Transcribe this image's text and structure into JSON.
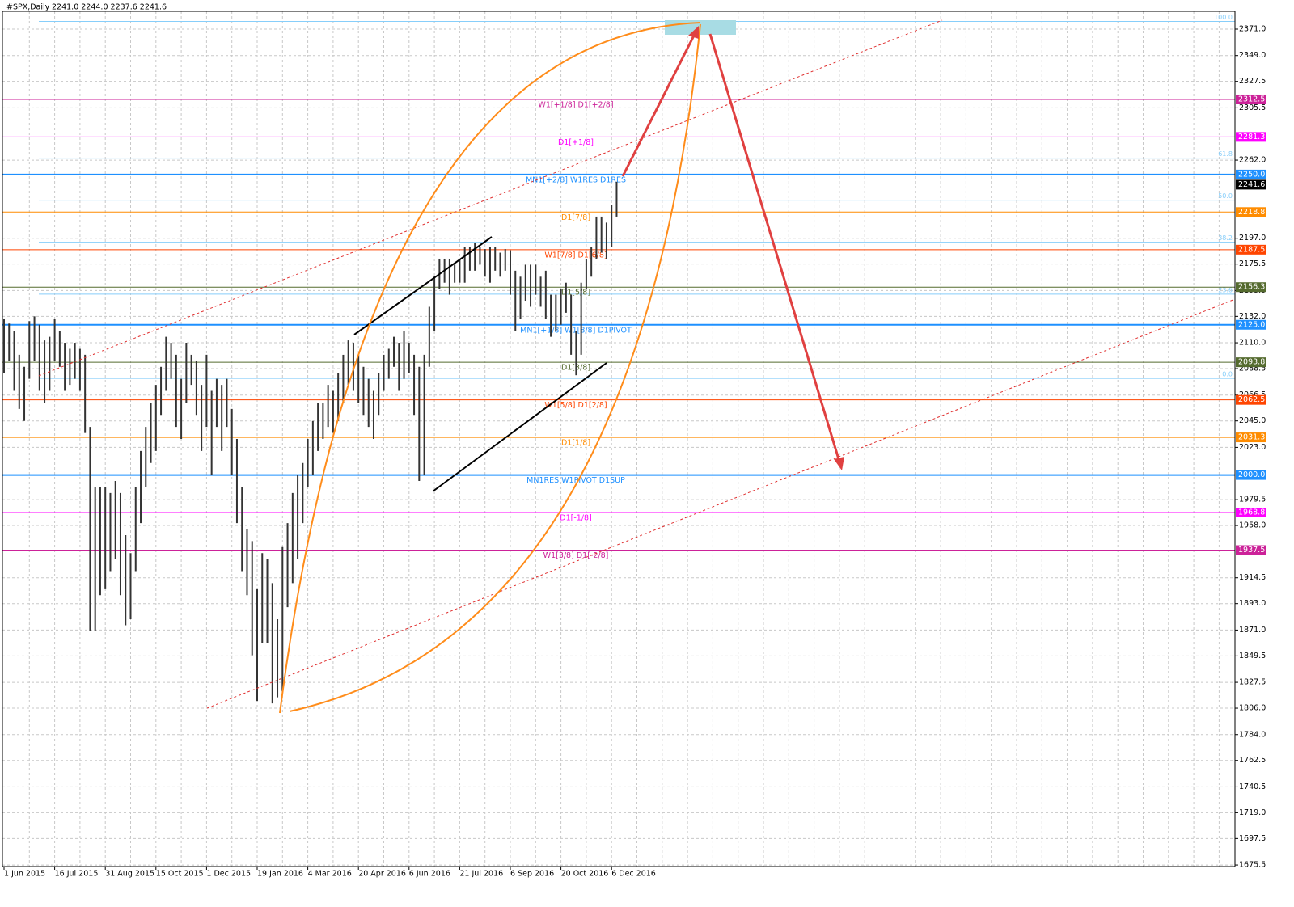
{
  "chart_data": {
    "type": "ohlc",
    "title": "#SPX,Daily",
    "subtitle": "2241.0 2244.0 2237.6 2241.6",
    "categories": [
      "1 Jun 2015",
      null,
      null,
      null,
      null,
      null,
      null,
      null,
      null,
      null,
      "16 Jul 2015",
      null,
      null,
      null,
      null,
      null,
      null,
      null,
      null,
      null,
      "31 Aug 2015",
      null,
      null,
      null,
      null,
      null,
      null,
      null,
      null,
      null,
      "15 Oct 2015",
      null,
      null,
      null,
      null,
      null,
      null,
      null,
      null,
      null,
      "1 Dec 2015",
      null,
      null,
      null,
      null,
      null,
      null,
      null,
      null,
      null,
      "19 Jan 2016",
      null,
      null,
      null,
      null,
      null,
      null,
      null,
      null,
      null,
      "4 Mar 2016",
      null,
      null,
      null,
      null,
      null,
      null,
      null,
      null,
      null,
      "20 Apr 2016",
      null,
      null,
      null,
      null,
      null,
      null,
      null,
      null,
      null,
      "6 Jun 2016",
      null,
      null,
      null,
      null,
      null,
      null,
      null,
      null,
      null,
      "21 Jul 2016",
      null,
      null,
      null,
      null,
      null,
      null,
      null,
      null,
      null,
      "6 Sep 2016",
      null,
      null,
      null,
      null,
      null,
      null,
      null,
      null,
      null,
      "20 Oct 2016",
      null,
      null,
      null,
      null,
      null,
      null,
      null,
      null,
      null,
      "6 Dec 2016",
      null
    ],
    "high": [
      2130,
      2126,
      2120,
      2100,
      2090,
      2128,
      2132,
      2125,
      2112,
      2115,
      2130,
      2120,
      2110,
      2105,
      2110,
      2105,
      2100,
      2040,
      1990,
      1990,
      1990,
      1985,
      1995,
      1985,
      1950,
      1935,
      1990,
      2020,
      2040,
      2060,
      2075,
      2090,
      2115,
      2110,
      2100,
      2080,
      2110,
      2100,
      2095,
      2075,
      2100,
      2070,
      2080,
      2075,
      2080,
      2055,
      2030,
      1990,
      1955,
      1945,
      1905,
      1935,
      1930,
      1910,
      1880,
      1940,
      1960,
      1985,
      2000,
      2010,
      2030,
      2045,
      2060,
      2060,
      2075,
      2070,
      2085,
      2100,
      2112,
      2110,
      2100,
      2090,
      2080,
      2070,
      2085,
      2100,
      2105,
      2115,
      2110,
      2120,
      2110,
      2100,
      2090,
      2100,
      2140,
      2165,
      2180,
      2180,
      2180,
      2175,
      2180,
      2190,
      2190,
      2193,
      2190,
      2188,
      2190,
      2190,
      2185,
      2188,
      2187,
      2170,
      2165,
      2175,
      2175,
      2175,
      2165,
      2170,
      2150,
      2150,
      2155,
      2160,
      2150,
      2120,
      2160,
      2180,
      2190,
      2215,
      2215,
      2210,
      2225,
      2244
    ],
    "low": [
      2085,
      2095,
      2070,
      2055,
      2045,
      2080,
      2095,
      2070,
      2060,
      2070,
      2095,
      2090,
      2070,
      2075,
      2080,
      2070,
      2035,
      1870,
      1870,
      1900,
      1905,
      1920,
      1930,
      1900,
      1875,
      1880,
      1920,
      1960,
      1990,
      2010,
      2020,
      2050,
      2070,
      2080,
      2040,
      2030,
      2060,
      2075,
      2050,
      2020,
      2040,
      2000,
      2040,
      2020,
      2040,
      2000,
      1960,
      1920,
      1900,
      1850,
      1812,
      1860,
      1860,
      1810,
      1815,
      1820,
      1890,
      1910,
      1930,
      1960,
      1990,
      2000,
      2020,
      2030,
      2040,
      2035,
      2045,
      2060,
      2075,
      2070,
      2060,
      2050,
      2040,
      2030,
      2050,
      2070,
      2080,
      2090,
      2070,
      2080,
      2085,
      2050,
      1995,
      2000,
      2090,
      2120,
      2155,
      2160,
      2150,
      2160,
      2160,
      2160,
      2170,
      2170,
      2175,
      2165,
      2160,
      2170,
      2165,
      2170,
      2150,
      2120,
      2130,
      2145,
      2140,
      2150,
      2140,
      2130,
      2115,
      2120,
      2125,
      2135,
      2100,
      2083,
      2100,
      2155,
      2165,
      2180,
      2185,
      2180,
      2190,
      2215
    ],
    "color": "#333333",
    "ylim": [
      1674.2,
      2385.8
    ],
    "yticks": [
      {
        "value": 2371.0,
        "label": "2371.0"
      },
      {
        "value": 2349.0,
        "label": "2349.0"
      },
      {
        "value": 2327.5,
        "label": "2327.5"
      },
      {
        "value": 2305.5,
        "label": "2305.5"
      },
      {
        "value": 2262.0,
        "label": "2262.0"
      },
      {
        "value": 2197.0,
        "label": "2197.0"
      },
      {
        "value": 2175.5,
        "label": "2175.5"
      },
      {
        "value": 2153.5,
        "label": "2153.5"
      },
      {
        "value": 2132.0,
        "label": "2132.0"
      },
      {
        "value": 2110.0,
        "label": "2110.0"
      },
      {
        "value": 2088.5,
        "label": "2088.5"
      },
      {
        "value": 2066.5,
        "label": "2066.5"
      },
      {
        "value": 2045.0,
        "label": "2045.0"
      },
      {
        "value": 2023.0,
        "label": "2023.0"
      },
      {
        "value": 1979.5,
        "label": "1979.5"
      },
      {
        "value": 1958.0,
        "label": "1958.0"
      },
      {
        "value": 1914.5,
        "label": "1914.5"
      },
      {
        "value": 1893.0,
        "label": "1893.0"
      },
      {
        "value": 1871.0,
        "label": "1871.0"
      },
      {
        "value": 1849.5,
        "label": "1849.5"
      },
      {
        "value": 1827.5,
        "label": "1827.5"
      },
      {
        "value": 1806.0,
        "label": "1806.0"
      },
      {
        "value": 1784.0,
        "label": "1784.0"
      },
      {
        "value": 1762.5,
        "label": "1762.5"
      },
      {
        "value": 1740.5,
        "label": "1740.5"
      },
      {
        "value": 1719.0,
        "label": "1719.0"
      },
      {
        "value": 1697.5,
        "label": "1697.5"
      },
      {
        "value": 1675.5,
        "label": "1675.5"
      }
    ],
    "grid": true,
    "fib_levels": [
      {
        "label": "100.0",
        "price": 2377.4
      },
      {
        "label": "61.8",
        "price": 2263.6
      },
      {
        "label": "50.0",
        "price": 2228.7
      },
      {
        "label": "38.2",
        "price": 2193.7
      },
      {
        "label": "23.6",
        "price": 2150.5
      },
      {
        "label": "0.0",
        "price": 2080.4
      }
    ],
    "fib_color": "#87cefa",
    "levels": [
      {
        "price": 2312.5,
        "price_label": "2312.5",
        "text": "W1[+1/8] D1[+2/8]",
        "color": "#cc2299"
      },
      {
        "price": 2281.3,
        "price_label": "2281.3",
        "text": "D1[+1/8]",
        "color": "#ff00ff"
      },
      {
        "price": 2250.0,
        "price_label": "2250.0",
        "text": "MN1[+2/8] W1RES D1RES",
        "color": "#1e90ff"
      },
      {
        "price": 2218.8,
        "price_label": "2218.8",
        "text": "D1[7/8]",
        "color": "#ff8c00"
      },
      {
        "price": 2187.5,
        "price_label": "2187.5",
        "text": "W1[7/8] D1[6/8]",
        "color": "#ff4500"
      },
      {
        "price": 2156.3,
        "price_label": "2156.3",
        "text": "D1[5/8]",
        "color": "#556b2f"
      },
      {
        "price": 2125.0,
        "price_label": "2125.0",
        "text": "MN1[+1/8] W1[8/8] D1PIVOT",
        "color": "#1e90ff"
      },
      {
        "price": 2093.8,
        "price_label": "2093.8",
        "text": "D1[3/8]",
        "color": "#556b2f"
      },
      {
        "price": 2062.5,
        "price_label": "2062.5",
        "text": "W1[5/8] D1[2/8]",
        "color": "#ff4500"
      },
      {
        "price": 2031.3,
        "price_label": "2031.3",
        "text": "D1[1/8]",
        "color": "#ff8c00"
      },
      {
        "price": 2000.0,
        "price_label": "2000.0",
        "text": "MN1RES W1PIVOT D1SUP",
        "color": "#1e90ff"
      },
      {
        "price": 1968.8,
        "price_label": "1968.8",
        "text": "D1[-1/8]",
        "color": "#ff00ff"
      },
      {
        "price": 1937.5,
        "price_label": "1937.5",
        "text": "W1[3/8] D1[-2/8]",
        "color": "#cc2299"
      }
    ],
    "current_price": 2241.6
  }
}
